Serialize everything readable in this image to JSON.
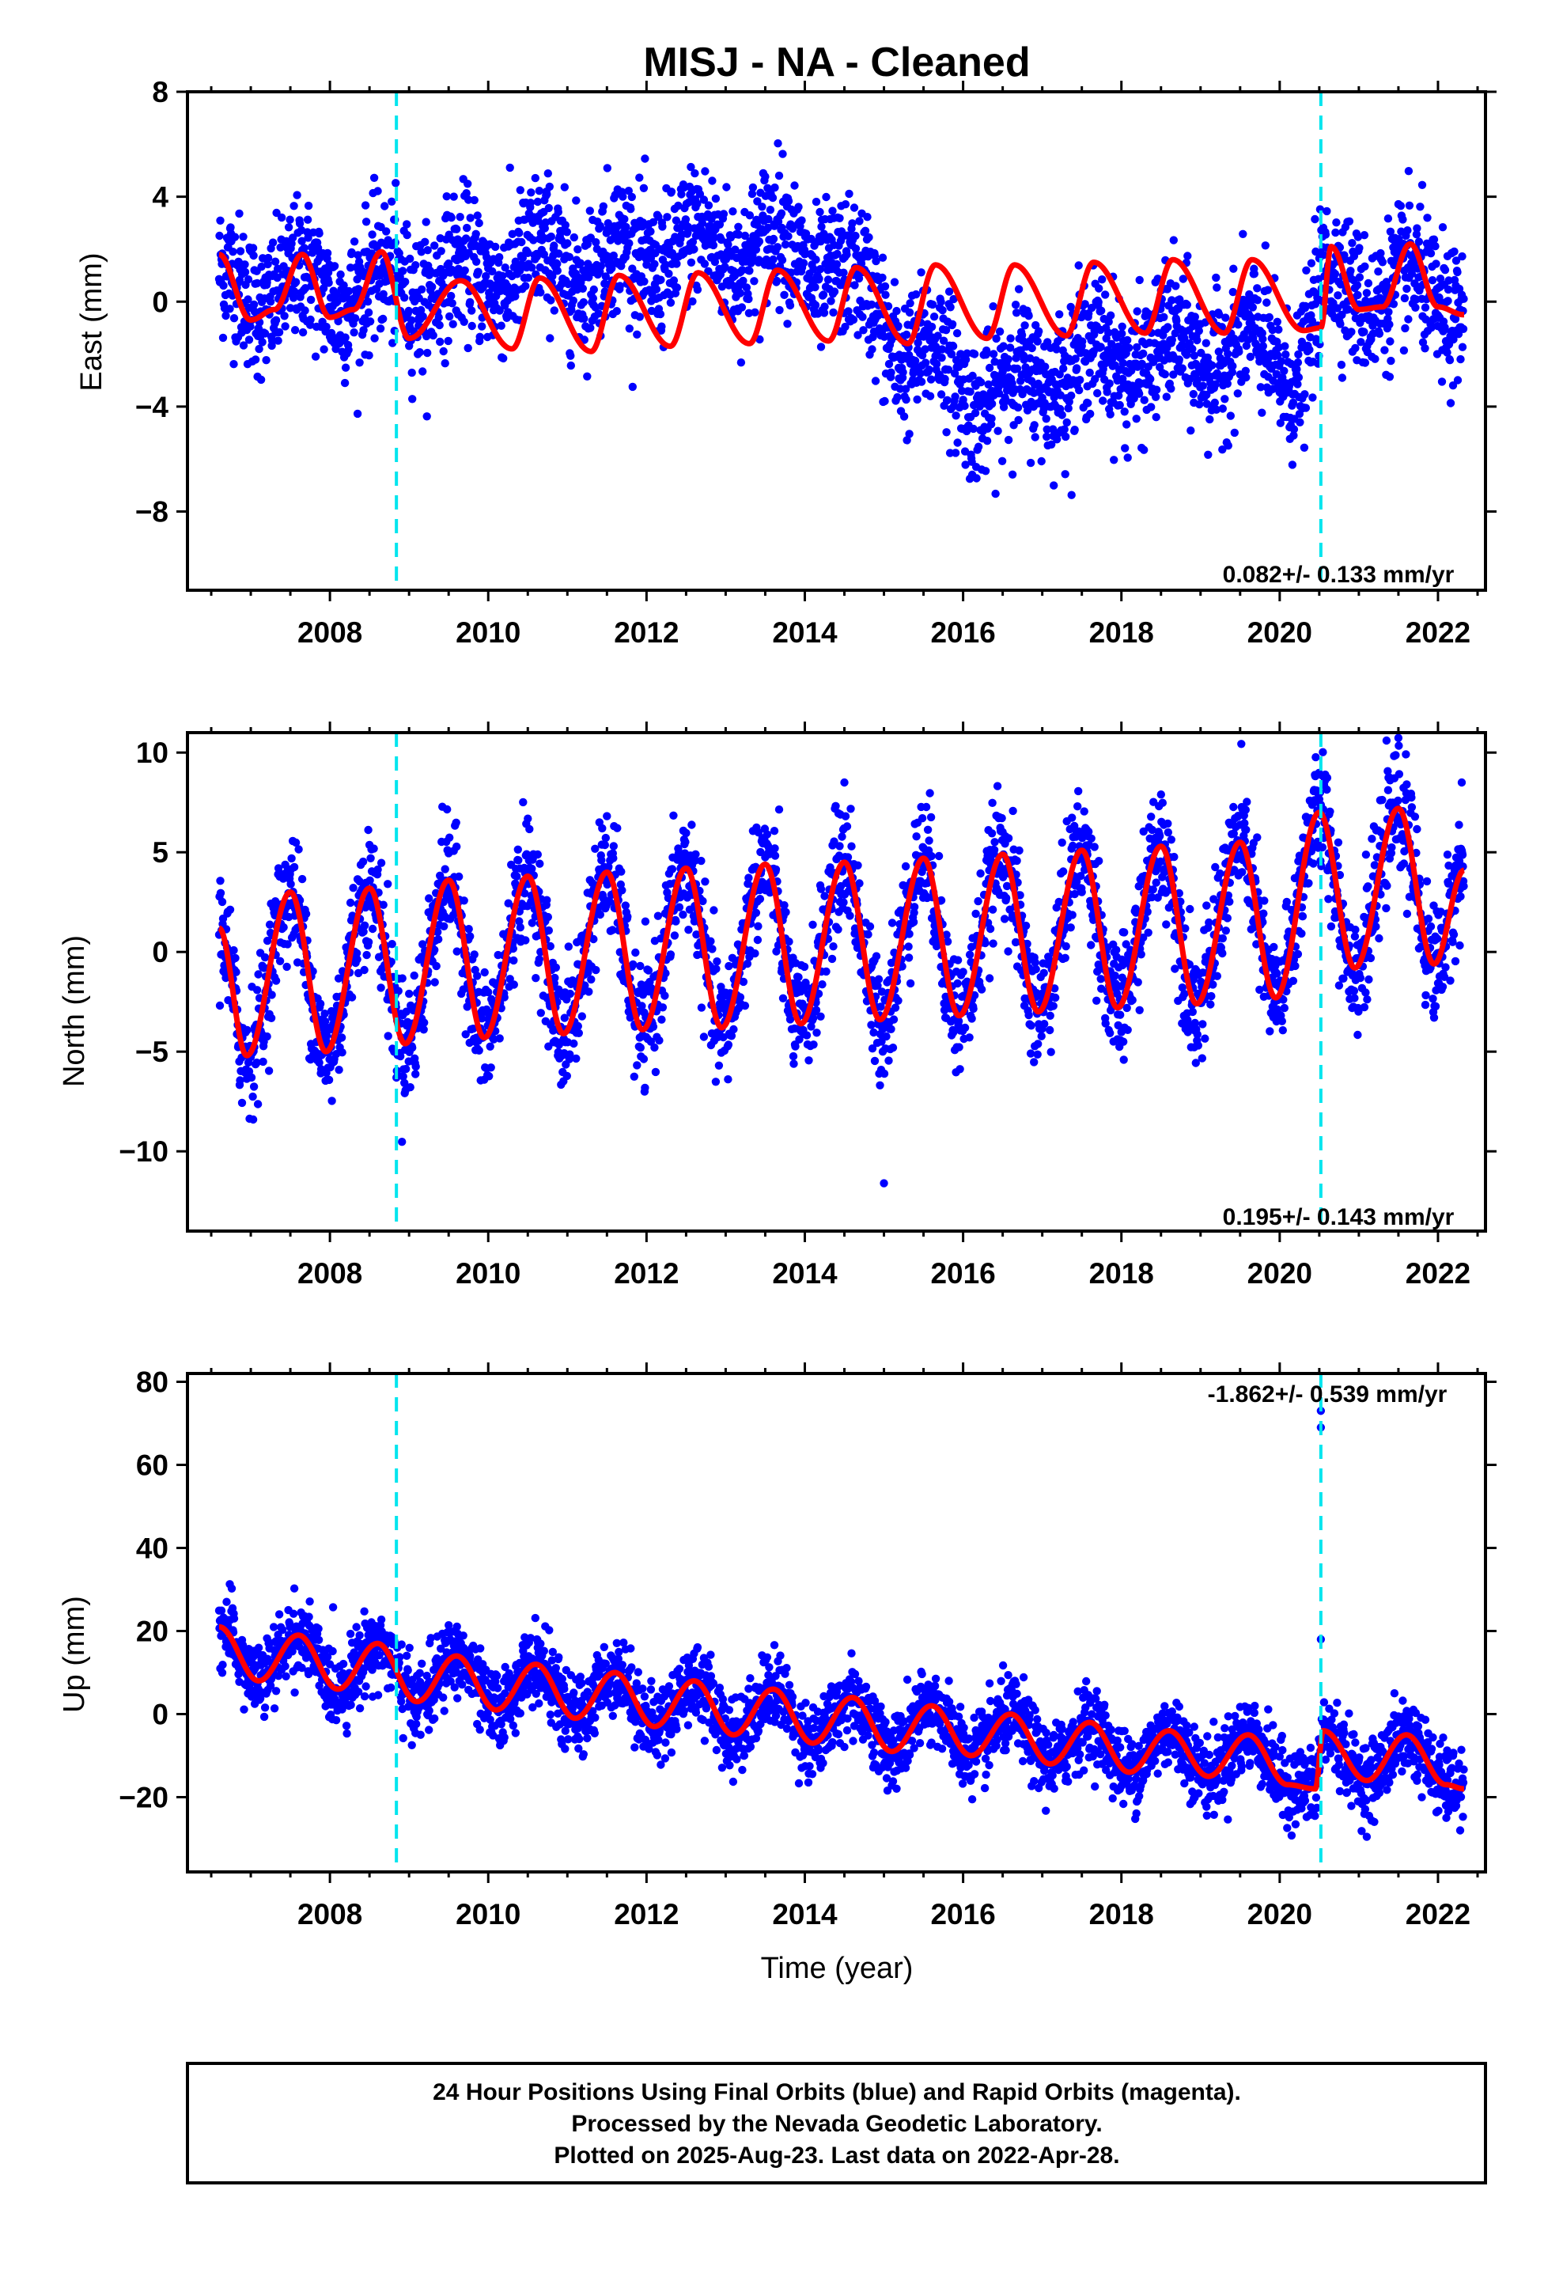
{
  "title": "MISJ  - NA - Cleaned",
  "colors": {
    "final_orbits": "#0000ff",
    "model_fit": "#ff0000",
    "offset_marker": "#00e5ee",
    "frame": "#000000"
  },
  "offset_epochs": [
    2008.84,
    2020.52
  ],
  "time_range": [
    2006.6,
    2022.33
  ],
  "chart_data": [
    {
      "type": "scatter",
      "component": "east",
      "ylabel": "East (mm)",
      "xlabel": "",
      "xlim": [
        2006.2,
        2022.6
      ],
      "ylim": [
        -11,
        8
      ],
      "xticks": [
        2008,
        2010,
        2012,
        2014,
        2016,
        2018,
        2020,
        2022
      ],
      "yticks": [
        8,
        4,
        0,
        -4,
        -8
      ],
      "ytick_labels": [
        "8",
        "4",
        "0",
        "−4",
        "−8"
      ],
      "rate_text": "0.082+/- 0.133 mm/yr",
      "rate_position": "bottom-right",
      "series": [
        {
          "kind": "observations",
          "note": "daily 24-hour positions, approximate envelope of data cloud",
          "x": [
            2006.7,
            2007.5,
            2008.5,
            2009.5,
            2010.5,
            2011.5,
            2012.5,
            2013.5,
            2014.3,
            2014.6,
            2015.5,
            2016.3,
            2017.5,
            2018.5,
            2019.5,
            2020.2,
            2020.6,
            2021.5,
            2022.3
          ],
          "y_center": [
            0.5,
            0.5,
            0.5,
            0.8,
            1.5,
            1.5,
            2,
            2.2,
            1.5,
            0.5,
            -2.2,
            -3.5,
            -2.3,
            -2.0,
            -1.8,
            -2.5,
            0.5,
            0.5,
            0.0
          ]
        },
        {
          "kind": "model",
          "x": [
            2006.6,
            2007.0,
            2007.3,
            2007.65,
            2008.0,
            2008.3,
            2008.65,
            2009.0,
            2009.65,
            2010.3,
            2010.65,
            2011.3,
            2011.65,
            2012.3,
            2012.65,
            2013.3,
            2013.65,
            2014.3,
            2014.65,
            2015.3,
            2015.65,
            2016.3,
            2016.65,
            2017.3,
            2017.65,
            2018.3,
            2018.65,
            2019.3,
            2019.65,
            2020.3,
            2020.52,
            2020.65,
            2021.0,
            2021.3,
            2021.65,
            2022.0,
            2022.33
          ],
          "y": [
            1.8,
            -0.7,
            -0.3,
            1.8,
            -0.6,
            -0.3,
            1.9,
            -1.4,
            0.8,
            -1.8,
            0.9,
            -1.9,
            1.0,
            -1.7,
            1.1,
            -1.6,
            1.2,
            -1.5,
            1.3,
            -1.6,
            1.4,
            -1.4,
            1.4,
            -1.3,
            1.5,
            -1.2,
            1.6,
            -1.2,
            1.6,
            -1.1,
            -1.0,
            2.1,
            -0.3,
            -0.2,
            2.2,
            -0.2,
            -0.5
          ]
        }
      ]
    },
    {
      "type": "scatter",
      "component": "north",
      "ylabel": "North (mm)",
      "xlabel": "",
      "xlim": [
        2006.2,
        2022.6
      ],
      "ylim": [
        -14,
        11
      ],
      "xticks": [
        2008,
        2010,
        2012,
        2014,
        2016,
        2018,
        2020,
        2022
      ],
      "yticks": [
        10,
        5,
        0,
        -5,
        -10
      ],
      "ytick_labels": [
        "10",
        "5",
        "0",
        "−5",
        "−10"
      ],
      "rate_text": "0.195+/- 0.143 mm/yr",
      "rate_position": "bottom-right",
      "series": [
        {
          "kind": "observations",
          "note": "daily 24-hour positions follow the seasonal model with about 2 mm scatter",
          "x": [
            2006.7,
            2014.5,
            2015.0,
            2022.3
          ],
          "y_center": [
            0,
            8.5,
            -11.6,
            8.5
          ]
        },
        {
          "kind": "model",
          "x": [
            2006.6,
            2006.95,
            2007.5,
            2007.95,
            2008.5,
            2008.95,
            2009.5,
            2009.95,
            2010.5,
            2010.95,
            2011.5,
            2011.95,
            2012.5,
            2012.95,
            2013.5,
            2013.95,
            2014.5,
            2014.95,
            2015.5,
            2015.95,
            2016.5,
            2016.95,
            2017.5,
            2017.95,
            2018.5,
            2018.95,
            2019.5,
            2019.95,
            2020.5,
            2020.95,
            2021.5,
            2021.95,
            2022.33
          ],
          "y": [
            1.2,
            -5.2,
            3.0,
            -5.0,
            3.2,
            -4.6,
            3.6,
            -4.3,
            3.8,
            -4.1,
            4.0,
            -3.9,
            4.2,
            -3.8,
            4.4,
            -3.6,
            4.5,
            -3.4,
            4.7,
            -3.2,
            4.9,
            -3.0,
            5.1,
            -2.8,
            5.3,
            -2.6,
            5.5,
            -2.3,
            7.0,
            -0.8,
            7.2,
            -0.6,
            4.1
          ]
        }
      ]
    },
    {
      "type": "scatter",
      "component": "up",
      "ylabel": "Up (mm)",
      "xlabel": "Time (year)",
      "xlim": [
        2006.2,
        2022.6
      ],
      "ylim": [
        -38,
        82
      ],
      "xticks": [
        2008,
        2010,
        2012,
        2014,
        2016,
        2018,
        2020,
        2022
      ],
      "yticks": [
        80,
        60,
        40,
        20,
        0,
        -20
      ],
      "ytick_labels": [
        "80",
        "60",
        "40",
        "20",
        "0",
        "−20"
      ],
      "rate_text": "-1.862+/- 0.539 mm/yr",
      "rate_position": "top-right",
      "series": [
        {
          "kind": "observations",
          "note": "daily 24-hour positions follow the seasonal model with about 5 mm scatter; outliers near 2020.5",
          "x": [
            2020.52,
            2020.52,
            2020.52
          ],
          "y_center": [
            69,
            73,
            18
          ]
        },
        {
          "kind": "model",
          "x": [
            2006.6,
            2007.1,
            2007.6,
            2008.1,
            2008.6,
            2009.1,
            2009.6,
            2010.1,
            2010.6,
            2011.1,
            2011.6,
            2012.1,
            2012.6,
            2013.1,
            2013.6,
            2014.1,
            2014.6,
            2015.1,
            2015.6,
            2016.1,
            2016.6,
            2017.1,
            2017.6,
            2018.1,
            2018.6,
            2019.1,
            2019.6,
            2020.1,
            2020.45,
            2020.55,
            2021.1,
            2021.6,
            2022.1,
            2022.33
          ],
          "y": [
            21,
            8,
            19,
            6,
            17,
            3,
            14,
            1,
            12,
            -1,
            10,
            -3,
            8,
            -5,
            6,
            -7,
            4,
            -9,
            2,
            -10,
            0,
            -12,
            -2,
            -14,
            -4,
            -15,
            -5,
            -17,
            -18,
            -4,
            -16,
            -5,
            -17,
            -18
          ]
        }
      ]
    }
  ],
  "caption": {
    "line1": "24 Hour Positions Using Final Orbits (blue) and Rapid Orbits (magenta).",
    "line2": "Processed by the Nevada Geodetic Laboratory.",
    "line3": "Plotted on 2025-Aug-23. Last data on 2022-Apr-28."
  }
}
